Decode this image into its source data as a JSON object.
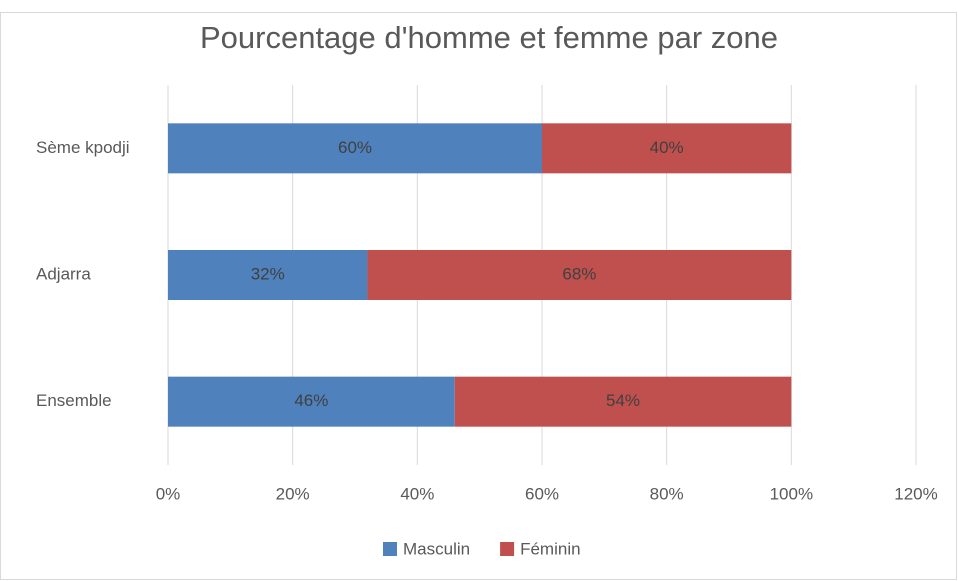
{
  "chart_data": {
    "type": "bar",
    "orientation": "horizontal",
    "stacked": true,
    "title": "Pourcentage d'homme et femme par zone",
    "categories": [
      "Sème kpodji",
      "Adjarra",
      "Ensemble"
    ],
    "series": [
      {
        "name": "Masculin",
        "color": "#4f81bd",
        "values": [
          60,
          32,
          46
        ],
        "value_labels": [
          "60%",
          "32%",
          "46%"
        ]
      },
      {
        "name": "Féminin",
        "color": "#c0504d",
        "values": [
          40,
          68,
          54
        ],
        "value_labels": [
          "40%",
          "68%",
          "54%"
        ]
      }
    ],
    "xlim": [
      0,
      120
    ],
    "xticks": [
      {
        "value": 0,
        "label": "0%"
      },
      {
        "value": 20,
        "label": "20%"
      },
      {
        "value": 40,
        "label": "40%"
      },
      {
        "value": 60,
        "label": "60%"
      },
      {
        "value": 80,
        "label": "80%"
      },
      {
        "value": 100,
        "label": "100%"
      },
      {
        "value": 120,
        "label": "120%"
      }
    ],
    "grid": true,
    "legend": "bottom"
  }
}
